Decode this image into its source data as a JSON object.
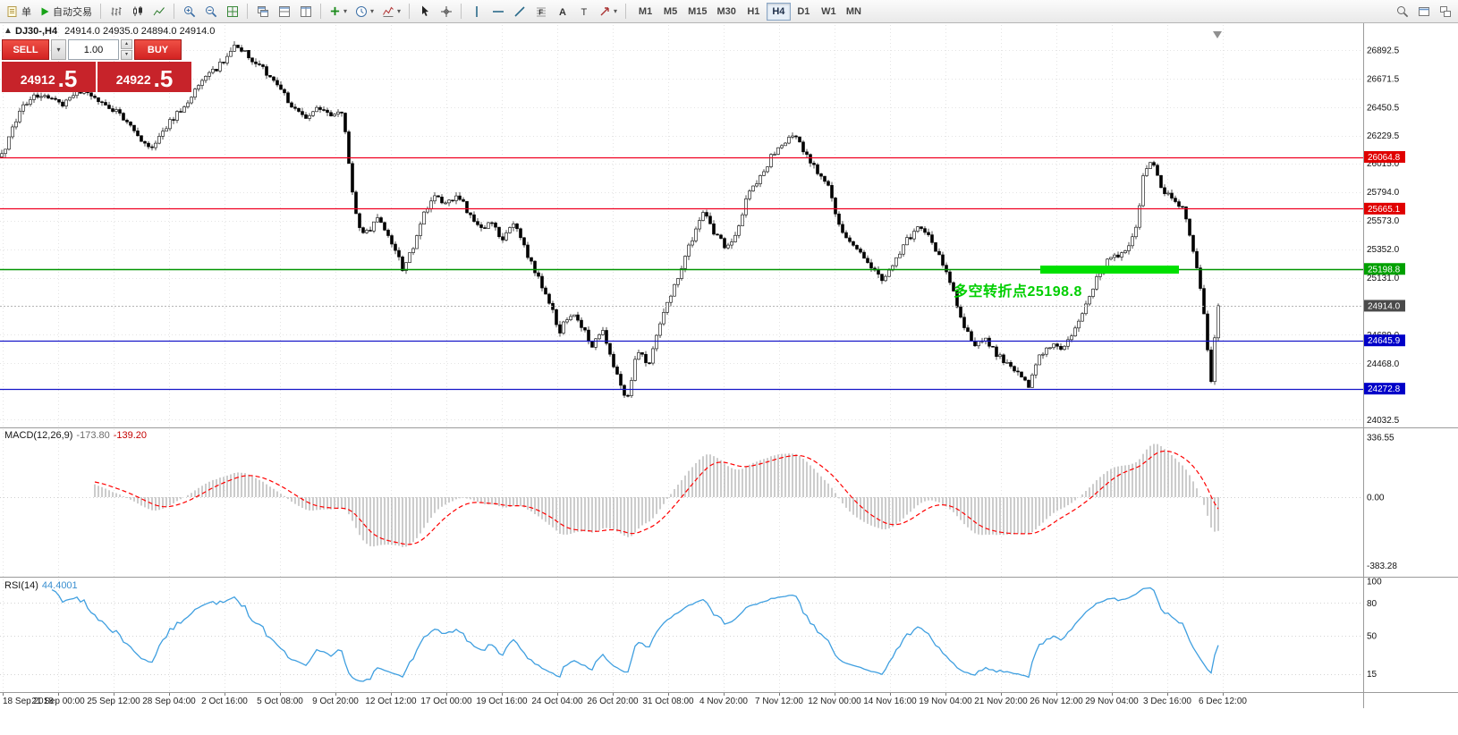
{
  "colors": {
    "level_red": "#f00020",
    "level_green": "#009600",
    "level_blue": "#1515c8",
    "band_green": "#00e000",
    "annotation_green": "#00cf00",
    "badge_red": "#e00000",
    "badge_green": "#00a000",
    "badge_blue": "#0000c8",
    "badge_current": "#4a4a4a",
    "macd_histogram": "#9a9a9a",
    "macd_signal": "#ff0000",
    "rsi_line": "#3f9fe0",
    "trade_red": "#c7232a"
  },
  "icons": {
    "dropdown_caret": "▾",
    "one_click_toggle": "▲",
    "volume_up": "▴",
    "volume_down": "▾"
  },
  "toolbar": {
    "order_label": "单",
    "autotrade_label": "自动交易",
    "timeframes": [
      "M1",
      "M5",
      "M15",
      "M30",
      "H1",
      "H4",
      "D1",
      "W1",
      "MN"
    ],
    "active_timeframe": "H4"
  },
  "chart": {
    "title": "DJ30-,H4",
    "ohlc": "24914.0 24935.0 24894.0 24914.0",
    "annotation": "多空转折点25198.8",
    "levels": [
      {
        "price": 26064.8,
        "color": "red"
      },
      {
        "price": 25665.1,
        "color": "red"
      },
      {
        "price": 25198.8,
        "color": "green",
        "band": true
      },
      {
        "price": 24914.0,
        "color": "current"
      },
      {
        "price": 24645.9,
        "color": "blue"
      },
      {
        "price": 24272.8,
        "color": "blue"
      }
    ],
    "y_axis": [
      "26892.5",
      "26671.5",
      "26450.5",
      "26229.5",
      "26015.0",
      "25794.0",
      "25573.0",
      "25352.0",
      "25131.0",
      "24689.0",
      "24468.0",
      "24032.5"
    ],
    "x_axis": [
      "18 Sep 2018",
      "21 Sep 00:00",
      "25 Sep 12:00",
      "28 Sep 04:00",
      "2 Oct 16:00",
      "5 Oct 08:00",
      "9 Oct 20:00",
      "12 Oct 12:00",
      "17 Oct 00:00",
      "19 Oct 16:00",
      "24 Oct 04:00",
      "26 Oct 20:00",
      "31 Oct 08:00",
      "4 Nov 20:00",
      "7 Nov 12:00",
      "12 Nov 00:00",
      "14 Nov 16:00",
      "19 Nov 04:00",
      "21 Nov 20:00",
      "26 Nov 12:00",
      "29 Nov 04:00",
      "3 Dec 16:00",
      "6 Dec 12:00"
    ]
  },
  "trade_panel": {
    "sell_label": "SELL",
    "buy_label": "BUY",
    "volume": "1.00",
    "sell_price_int": "24912",
    "sell_price_frac": ".5",
    "buy_price_int": "24922",
    "buy_price_frac": ".5"
  },
  "macd": {
    "name": "MACD(12,26,9)",
    "value1": "-173.80",
    "value2": "-139.20",
    "axis": [
      "336.55",
      "0.00",
      "-383.28"
    ],
    "axis_ref_value": 336.55
  },
  "rsi": {
    "name": "RSI(14)",
    "value": "44.4001",
    "axis": [
      "100",
      "80",
      "50",
      "15"
    ],
    "levels": [
      80,
      50,
      15
    ]
  },
  "chart_data": {
    "type": "candlestick",
    "symbol": "DJ30-",
    "timeframe": "H4",
    "price_axis_range": [
      23980,
      27085
    ],
    "last_price": 24914.0,
    "noise": 50,
    "wick": 30,
    "band_x": [
      1163,
      1318
    ],
    "price_anchors": [
      [
        0,
        26050
      ],
      [
        25,
        26450
      ],
      [
        45,
        26560
      ],
      [
        70,
        26480
      ],
      [
        95,
        26600
      ],
      [
        115,
        26480
      ],
      [
        135,
        26390
      ],
      [
        155,
        26210
      ],
      [
        170,
        26130
      ],
      [
        190,
        26340
      ],
      [
        210,
        26500
      ],
      [
        230,
        26680
      ],
      [
        248,
        26790
      ],
      [
        265,
        26940
      ],
      [
        280,
        26820
      ],
      [
        295,
        26740
      ],
      [
        312,
        26630
      ],
      [
        326,
        26440
      ],
      [
        340,
        26360
      ],
      [
        356,
        26450
      ],
      [
        370,
        26390
      ],
      [
        383,
        26430
      ],
      [
        391,
        25950
      ],
      [
        400,
        25520
      ],
      [
        412,
        25480
      ],
      [
        424,
        25610
      ],
      [
        436,
        25430
      ],
      [
        450,
        25210
      ],
      [
        462,
        25360
      ],
      [
        475,
        25650
      ],
      [
        488,
        25760
      ],
      [
        500,
        25700
      ],
      [
        512,
        25780
      ],
      [
        525,
        25610
      ],
      [
        538,
        25500
      ],
      [
        550,
        25570
      ],
      [
        562,
        25410
      ],
      [
        575,
        25560
      ],
      [
        588,
        25340
      ],
      [
        600,
        25150
      ],
      [
        612,
        24990
      ],
      [
        625,
        24710
      ],
      [
        637,
        24860
      ],
      [
        650,
        24760
      ],
      [
        662,
        24610
      ],
      [
        675,
        24710
      ],
      [
        687,
        24440
      ],
      [
        700,
        24160
      ],
      [
        712,
        24560
      ],
      [
        725,
        24470
      ],
      [
        737,
        24760
      ],
      [
        750,
        25010
      ],
      [
        762,
        25210
      ],
      [
        775,
        25460
      ],
      [
        787,
        25640
      ],
      [
        800,
        25460
      ],
      [
        812,
        25360
      ],
      [
        825,
        25510
      ],
      [
        837,
        25800
      ],
      [
        850,
        25910
      ],
      [
        862,
        26060
      ],
      [
        875,
        26160
      ],
      [
        887,
        26230
      ],
      [
        900,
        26110
      ],
      [
        912,
        25960
      ],
      [
        925,
        25860
      ],
      [
        937,
        25560
      ],
      [
        950,
        25410
      ],
      [
        962,
        25310
      ],
      [
        975,
        25210
      ],
      [
        987,
        25110
      ],
      [
        1000,
        25260
      ],
      [
        1012,
        25410
      ],
      [
        1025,
        25510
      ],
      [
        1037,
        25460
      ],
      [
        1050,
        25310
      ],
      [
        1062,
        25110
      ],
      [
        1075,
        24810
      ],
      [
        1087,
        24610
      ],
      [
        1100,
        24660
      ],
      [
        1112,
        24560
      ],
      [
        1125,
        24460
      ],
      [
        1137,
        24410
      ],
      [
        1150,
        24300
      ],
      [
        1162,
        24510
      ],
      [
        1175,
        24610
      ],
      [
        1187,
        24560
      ],
      [
        1200,
        24710
      ],
      [
        1212,
        24910
      ],
      [
        1225,
        25110
      ],
      [
        1237,
        25260
      ],
      [
        1250,
        25310
      ],
      [
        1262,
        25360
      ],
      [
        1270,
        25510
      ],
      [
        1278,
        25910
      ],
      [
        1285,
        26060
      ],
      [
        1292,
        25960
      ],
      [
        1300,
        25810
      ],
      [
        1308,
        25760
      ],
      [
        1316,
        25700
      ],
      [
        1324,
        25640
      ],
      [
        1331,
        25410
      ],
      [
        1338,
        25210
      ],
      [
        1344,
        24950
      ],
      [
        1349,
        24650
      ],
      [
        1354,
        24350
      ],
      [
        1358,
        24650
      ],
      [
        1362,
        24914
      ]
    ],
    "indicators": [
      {
        "name": "MACD",
        "params": [
          12,
          26,
          9
        ],
        "display_values": [
          -173.8,
          -139.2
        ],
        "axis": [
          336.55,
          0,
          -383.28
        ]
      },
      {
        "name": "RSI",
        "params": [
          14
        ],
        "display_value": 44.4001,
        "axis": [
          100,
          80,
          50,
          15
        ]
      }
    ]
  }
}
